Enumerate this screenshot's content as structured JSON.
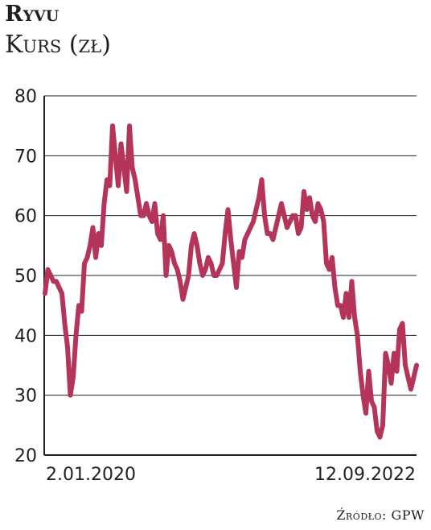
{
  "header": {
    "title": "Ryvu",
    "subtitle": "Kurs (zł)"
  },
  "footer": {
    "source": "Źródło: GPW"
  },
  "colors": {
    "line": "#b5345a",
    "grid": "#231f20",
    "text": "#231f20"
  },
  "chart_data": {
    "type": "line",
    "title": "Ryvu",
    "ylabel": "Kurs (zł)",
    "xlabel": "",
    "ylim": [
      20,
      80
    ],
    "yticks": [
      20,
      30,
      40,
      50,
      60,
      70,
      80
    ],
    "grid": "horizontal",
    "x_tick_labels": [
      "2.01.2020",
      "12.09.2022"
    ],
    "series": [
      {
        "values": [
          47,
          51,
          50,
          49,
          49,
          48,
          47,
          42,
          38,
          30,
          33,
          40,
          45,
          44,
          52,
          53,
          55,
          58,
          53,
          57,
          55,
          62,
          66,
          65,
          75,
          70,
          65,
          72,
          68,
          64,
          75,
          68,
          66,
          63,
          60,
          60,
          62,
          60,
          59,
          62,
          57,
          56,
          60,
          50,
          55,
          54,
          52,
          51,
          49,
          46,
          48,
          50,
          55,
          57,
          55,
          52,
          50,
          51,
          53,
          52,
          50,
          50,
          51,
          52,
          57,
          61,
          56,
          52,
          48,
          54,
          53,
          56,
          57,
          58,
          59,
          61,
          63,
          66,
          60,
          57,
          57,
          56,
          58,
          60,
          62,
          60,
          58,
          59,
          60,
          60,
          57,
          58,
          64,
          61,
          63,
          60,
          59,
          62,
          61,
          59,
          52,
          51,
          53,
          48,
          45,
          45,
          43,
          47,
          43,
          49,
          43,
          40,
          34,
          30,
          27,
          34,
          29,
          28,
          24,
          23,
          25,
          37,
          35,
          32,
          37,
          34,
          41,
          42,
          35,
          33,
          31,
          33,
          35
        ]
      }
    ]
  }
}
